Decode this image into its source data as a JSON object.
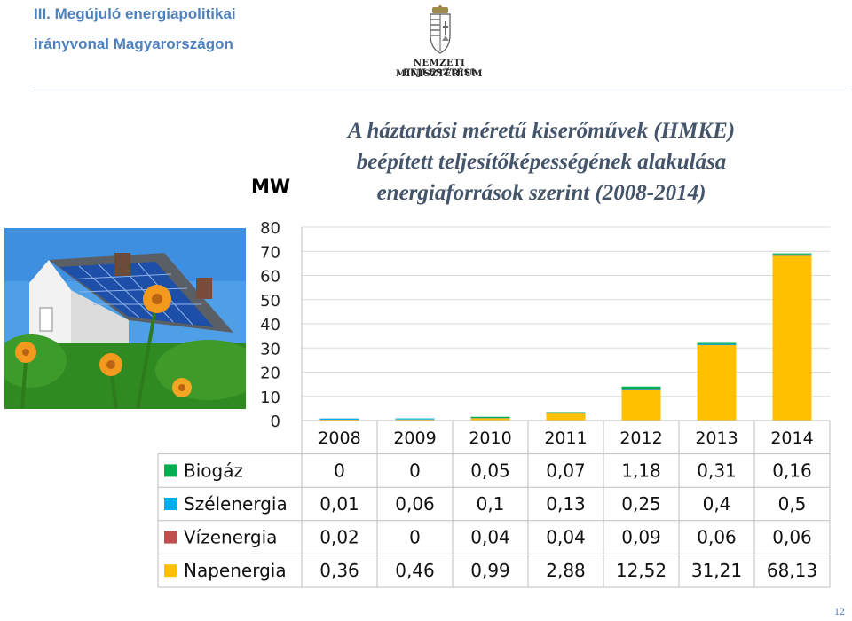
{
  "header": {
    "line1": "III. Megújuló energiapolitikai",
    "line2": "irányvonal Magyarországon",
    "ministry_line1": "NEMZETI FEJLESZTÉSI",
    "ministry_line2": "MINISZTÉRIUM"
  },
  "page_number": "12",
  "chart_data": {
    "type": "bar",
    "stacked": true,
    "title_lines": [
      "A háztartási méretű kiserőművek (HMKE)",
      "beépített teljesítőképességének alakulása",
      "energiaforrások szerint (2008-2014)"
    ],
    "ylabel": "MW",
    "ylim": [
      0,
      80
    ],
    "yticks": [
      "0",
      "10",
      "20",
      "30",
      "40",
      "50",
      "60",
      "70",
      "80"
    ],
    "grid": true,
    "categories": [
      "2008",
      "2009",
      "2010",
      "2011",
      "2012",
      "2013",
      "2014"
    ],
    "series": [
      {
        "name": "Biogáz",
        "color": "#00b050",
        "values": [
          0,
          0,
          0.05,
          0.07,
          1.18,
          0.31,
          0.16
        ],
        "labels": [
          "0",
          "0",
          "0,05",
          "0,07",
          "1,18",
          "0,31",
          "0,16"
        ]
      },
      {
        "name": "Szélenergia",
        "color": "#00b0f0",
        "values": [
          0.01,
          0.06,
          0.1,
          0.13,
          0.25,
          0.4,
          0.5
        ],
        "labels": [
          "0,01",
          "0,06",
          "0,1",
          "0,13",
          "0,25",
          "0,4",
          "0,5"
        ]
      },
      {
        "name": "Vízenergia",
        "color": "#c0504d",
        "values": [
          0.02,
          0,
          0.04,
          0.04,
          0.09,
          0.06,
          0.06
        ],
        "labels": [
          "0,02",
          "0",
          "0,04",
          "0,04",
          "0,09",
          "0,06",
          "0,06"
        ]
      },
      {
        "name": "Napenergia",
        "color": "#ffc000",
        "values": [
          0.36,
          0.46,
          0.99,
          2.88,
          12.52,
          31.21,
          68.13
        ],
        "labels": [
          "0,36",
          "0,46",
          "0,99",
          "2,88",
          "12,52",
          "31,21",
          "68,13"
        ]
      }
    ]
  }
}
